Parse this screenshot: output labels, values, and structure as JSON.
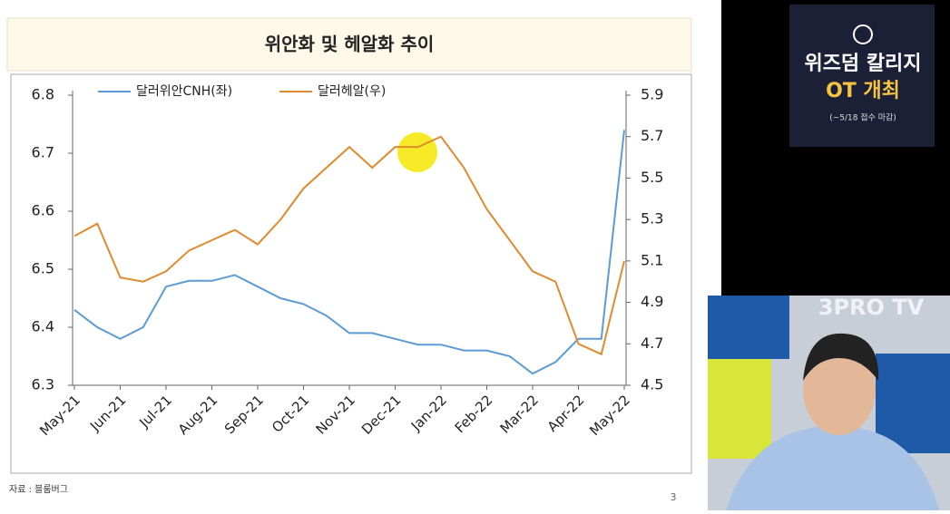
{
  "chart_data": {
    "type": "line",
    "title": "위안화 및 헤알화 추이",
    "categories": [
      "May-21",
      null,
      "Jun-21",
      null,
      "Jul-21",
      null,
      "Aug-21",
      null,
      "Sep-21",
      null,
      "Oct-21",
      null,
      "Nov-21",
      null,
      "Dec-21",
      null,
      "Jan-22",
      null,
      "Feb-22",
      null,
      "Mar-22",
      null,
      "Apr-22",
      null,
      "May-22"
    ],
    "series": [
      {
        "name": "달러위안CNH(좌)",
        "color": "#5b9bd5",
        "values": [
          6.43,
          6.4,
          6.38,
          6.4,
          6.47,
          6.48,
          6.48,
          6.49,
          6.47,
          6.45,
          6.44,
          6.42,
          6.39,
          6.39,
          6.38,
          6.37,
          6.37,
          6.36,
          6.36,
          6.35,
          6.32,
          6.34,
          6.38,
          6.38,
          6.74
        ]
      },
      {
        "name": "달러헤알(우)",
        "color": "#e08a2e",
        "axis": "y2",
        "values": [
          5.22,
          5.28,
          5.02,
          5.0,
          5.05,
          5.15,
          5.2,
          5.25,
          5.18,
          5.3,
          5.45,
          5.55,
          5.65,
          5.55,
          5.65,
          5.65,
          5.7,
          5.55,
          5.35,
          5.2,
          5.05,
          5.0,
          4.7,
          4.65,
          5.1
        ]
      }
    ],
    "ylim": [
      6.3,
      6.8
    ],
    "yticks": [
      6.3,
      6.4,
      6.5,
      6.6,
      6.7,
      6.8
    ],
    "y2lim": [
      4.5,
      5.9
    ],
    "y2ticks": [
      4.5,
      4.7,
      4.9,
      5.1,
      5.3,
      5.5,
      5.7,
      5.9
    ],
    "legend": "top-left"
  },
  "slide": {
    "source": "자료 : 블룸버그",
    "page": "3"
  },
  "ad": {
    "title": "위즈덤 칼리지",
    "subtitle": "OT 개최",
    "note": "(~5/18 접수 마감)"
  },
  "video": {
    "logo": "3PRO TV"
  }
}
